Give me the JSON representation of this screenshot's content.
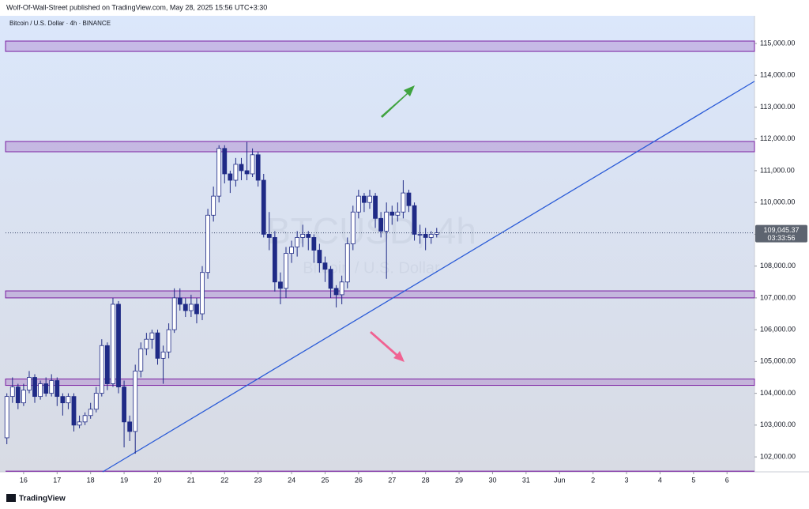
{
  "header": "Wolf-Of-Wall-Street published on TradingView.com, May 28, 2025 15:56 UTC+3:30",
  "footer": "TradingView",
  "chart_data": {
    "type": "candlestick",
    "title": "Bitcoin / U.S. Dollar · 4h · BINANCE",
    "watermark": "BTCUSD, 4h",
    "watermark_sub": "Bitcoin / U.S. Dollar",
    "x": [
      15.5,
      15.667,
      15.833,
      16,
      16.167,
      16.333,
      16.5,
      16.667,
      16.833,
      17,
      17.167,
      17.333,
      17.5,
      17.667,
      17.833,
      18,
      18.167,
      18.333,
      18.5,
      18.667,
      18.833,
      19,
      19.167,
      19.333,
      19.5,
      19.667,
      19.833,
      20,
      20.167,
      20.333,
      20.5,
      20.667,
      20.833,
      21,
      21.167,
      21.333,
      21.5,
      21.667,
      21.833,
      22,
      22.167,
      22.333,
      22.5,
      22.667,
      22.833,
      23,
      23.167,
      23.333,
      23.5,
      23.667,
      23.833,
      24,
      24.167,
      24.333,
      24.5,
      24.667,
      24.833,
      25,
      25.167,
      25.333,
      25.5,
      25.667,
      25.833,
      26,
      26.167,
      26.333,
      26.5,
      26.667,
      26.833,
      27,
      27.167,
      27.333,
      27.5,
      27.667,
      27.833,
      28,
      28.167,
      28.333
    ],
    "open": [
      102600,
      103900,
      104200,
      103700,
      104100,
      104500,
      103900,
      104300,
      104000,
      104400,
      103900,
      103700,
      103900,
      103000,
      103100,
      103300,
      103500,
      104000,
      105500,
      104300,
      106800,
      104200,
      103100,
      102800,
      104700,
      105400,
      105700,
      105900,
      105100,
      105300,
      106000,
      107000,
      106800,
      106600,
      106800,
      106500,
      107800,
      109600,
      110200,
      111700,
      110900,
      110700,
      111200,
      111000,
      110900,
      111500,
      110700,
      109000,
      108900,
      107500,
      107300,
      108400,
      108600,
      108900,
      109000,
      108900,
      108500,
      108100,
      107900,
      107300,
      107100,
      107500,
      108700,
      109700,
      110200,
      110000,
      110200,
      109500,
      109100,
      109700,
      109600,
      109700,
      110300,
      109900,
      109000,
      109000,
      108900,
      109000
    ],
    "high": [
      104000,
      104500,
      104300,
      104300,
      104700,
      104600,
      104400,
      104500,
      104600,
      104500,
      104000,
      104000,
      104000,
      103300,
      103400,
      103700,
      104200,
      105700,
      105600,
      107000,
      106900,
      104400,
      103300,
      104900,
      105600,
      105900,
      106000,
      106000,
      105500,
      106200,
      107300,
      107300,
      107000,
      107100,
      107000,
      108000,
      109800,
      110500,
      111800,
      111800,
      111000,
      111400,
      111400,
      111900,
      111700,
      111600,
      110900,
      109700,
      109100,
      107800,
      108600,
      108800,
      109100,
      109300,
      109100,
      109000,
      108700,
      108300,
      108000,
      107400,
      107700,
      108900,
      109900,
      110400,
      110300,
      110400,
      110300,
      109700,
      110000,
      109900,
      110000,
      110700,
      110400,
      110000,
      109300,
      109200,
      109100,
      109200
    ],
    "low": [
      102400,
      103700,
      103500,
      103600,
      104000,
      103700,
      103800,
      103900,
      103900,
      103600,
      103300,
      103500,
      102800,
      102900,
      103000,
      103200,
      103400,
      103900,
      104100,
      104200,
      104000,
      102300,
      102500,
      102100,
      104500,
      105200,
      105400,
      104900,
      104300,
      105100,
      105900,
      106600,
      106400,
      106400,
      106200,
      106300,
      107600,
      109400,
      110000,
      110600,
      110300,
      110500,
      110700,
      110700,
      110800,
      110500,
      108900,
      108500,
      107200,
      106800,
      107000,
      108100,
      108300,
      108600,
      108500,
      108100,
      107800,
      107500,
      107000,
      106700,
      106800,
      107300,
      108500,
      109500,
      109700,
      109800,
      109200,
      108900,
      107600,
      109300,
      109400,
      109500,
      109700,
      108800,
      108700,
      108500,
      108700,
      108900
    ],
    "close": [
      103900,
      104200,
      103700,
      104100,
      104500,
      103900,
      104300,
      104000,
      104400,
      103900,
      103700,
      103900,
      103000,
      103100,
      103300,
      103500,
      104000,
      105500,
      104300,
      106800,
      104200,
      103100,
      102800,
      104700,
      105400,
      105700,
      105900,
      105100,
      105300,
      106000,
      107000,
      106800,
      106600,
      106800,
      106500,
      107800,
      109600,
      110200,
      111700,
      110900,
      110700,
      111200,
      111000,
      110900,
      111500,
      110700,
      109000,
      108900,
      107500,
      107300,
      108400,
      108600,
      108900,
      109000,
      108900,
      108500,
      108100,
      107900,
      107300,
      107100,
      107500,
      108700,
      109700,
      110200,
      110000,
      110200,
      109500,
      109100,
      109700,
      109600,
      109700,
      110300,
      109900,
      109000,
      109000,
      108900,
      109000,
      109045.37
    ],
    "up_color": "#ffffff",
    "down_color": "#1f2a86",
    "edge_color": "#1f2a86",
    "zones": [
      [
        114750,
        115075
      ],
      [
        111595,
        111918
      ],
      [
        107000,
        107220
      ],
      [
        104250,
        104450
      ]
    ],
    "zone_color": "#7b1fa2",
    "support_line": 101550,
    "trendline": {
      "x": [
        18.36,
        37.82
      ],
      "y": [
        101530,
        113810
      ],
      "color": "#2a5bd7"
    },
    "last_price": {
      "value": 109045.37,
      "label": "109,045.37"
    },
    "countdown": "03:33:56",
    "xlim": [
      15.46,
      37.82
    ],
    "xticks": [
      16,
      17,
      18,
      19,
      20,
      21,
      22,
      23,
      24,
      25,
      26,
      27,
      28,
      29,
      30,
      31,
      {
        "value": 32,
        "label": "Jun"
      },
      {
        "value": 33,
        "label": "2"
      },
      {
        "value": 34,
        "label": "3"
      },
      {
        "value": 35,
        "label": "4"
      },
      {
        "value": 36,
        "label": "5"
      },
      {
        "value": 37,
        "label": "6"
      }
    ],
    "ylim": [
      101530,
      115820
    ],
    "yticks": [
      {
        "value": 102000,
        "label": "102,000.00"
      },
      {
        "value": 103000,
        "label": "103,000.00"
      },
      {
        "value": 104000,
        "label": "104,000.00"
      },
      {
        "value": 105000,
        "label": "105,000.00"
      },
      {
        "value": 106000,
        "label": "106,000.00"
      },
      {
        "value": 107000,
        "label": "107,000.00"
      },
      {
        "value": 108000,
        "label": "108,000.00"
      },
      {
        "value": 109000,
        "label": "109,000.00"
      },
      {
        "value": 110000,
        "label": "110,000.00"
      },
      {
        "value": 111000,
        "label": "111,000.00"
      },
      {
        "value": 112000,
        "label": "112,000.00"
      },
      {
        "value": 113000,
        "label": "113,000.00"
      },
      {
        "value": 114000,
        "label": "114,000.00"
      },
      {
        "value": 115000,
        "label": "115,000.00"
      }
    ],
    "grid": false
  }
}
